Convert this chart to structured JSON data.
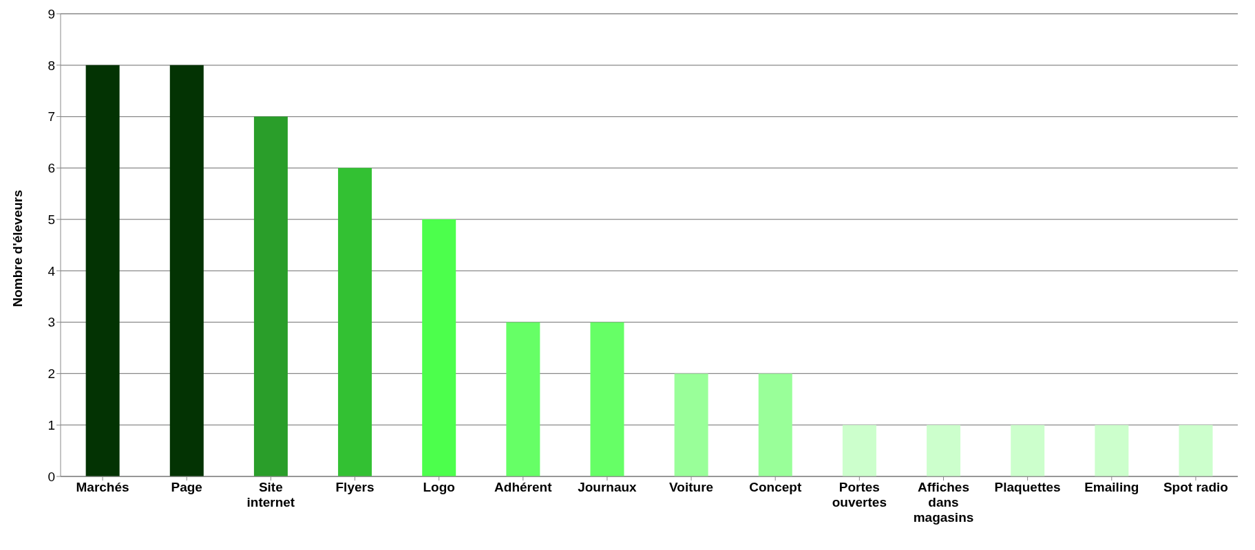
{
  "chart_data": {
    "type": "bar",
    "ylabel": "Nombre d'éleveurs",
    "categories": [
      "Marchés",
      "Page",
      "Site internet",
      "Flyers",
      "Logo",
      "Adhérent",
      "Journaux",
      "Voiture",
      "Concept",
      "Portes ouvertes",
      "Affiches dans magasins",
      "Plaquettes",
      "Emailing",
      "Spot radio"
    ],
    "values": [
      8,
      8,
      7,
      6,
      5,
      3,
      3,
      2,
      2,
      1,
      1,
      1,
      1,
      1
    ],
    "colors": [
      "#033303",
      "#033303",
      "#2a9e2a",
      "#33c133",
      "#4cff4c",
      "#66ff66",
      "#66ff66",
      "#99ff99",
      "#99ff99",
      "#ccffcc",
      "#ccffcc",
      "#ccffcc",
      "#ccffcc",
      "#ccffcc"
    ],
    "ylim": [
      0,
      9
    ],
    "yticks": [
      0,
      1,
      2,
      3,
      4,
      5,
      6,
      7,
      8,
      9
    ],
    "grid": "y"
  }
}
